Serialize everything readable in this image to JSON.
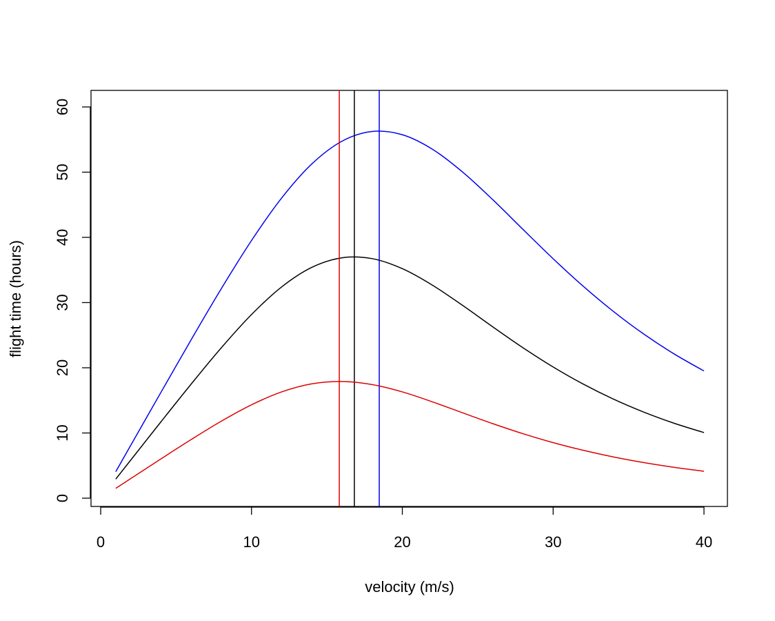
{
  "chart_data": {
    "type": "line",
    "title": "",
    "xlabel": "velocity (m/s)",
    "ylabel": "flight time (hours)",
    "xlim": [
      0,
      40
    ],
    "ylim": [
      0,
      60
    ],
    "xticks": [
      0,
      10,
      20,
      30,
      40
    ],
    "yticks": [
      0,
      10,
      20,
      30,
      40,
      50,
      60
    ],
    "grid": false,
    "legend": "none",
    "x": [
      1,
      2,
      4,
      6,
      8,
      10,
      12,
      14,
      16,
      18,
      20,
      22,
      24,
      26,
      28,
      30,
      32,
      34,
      36,
      38,
      40
    ],
    "series": [
      {
        "name": "blue",
        "color": "#0000ee",
        "values": [
          4.06,
          8.13,
          16.25,
          24.3,
          32.14,
          39.51,
          46.04,
          51.26,
          54.75,
          56.24,
          55.74,
          53.51,
          50.01,
          45.77,
          41.22,
          36.72,
          32.49,
          28.63,
          25.18,
          22.15,
          19.51
        ],
        "optimum_velocity": 18.47
      },
      {
        "name": "black",
        "color": "#000000",
        "values": [
          2.93,
          5.86,
          11.72,
          17.5,
          23.07,
          28.16,
          32.4,
          35.4,
          36.87,
          36.74,
          35.2,
          32.66,
          29.56,
          26.27,
          23.07,
          20.12,
          17.49,
          15.19,
          13.21,
          11.51,
          10.06
        ],
        "optimum_velocity": 16.82
      },
      {
        "name": "red",
        "color": "#dd0000",
        "values": [
          1.51,
          3.02,
          6.03,
          8.99,
          11.81,
          14.32,
          16.3,
          17.54,
          17.9,
          17.42,
          16.3,
          14.77,
          13.09,
          11.43,
          9.89,
          8.52,
          7.34,
          6.32,
          5.46,
          4.74,
          4.13
        ],
        "optimum_velocity": 15.82
      }
    ]
  }
}
